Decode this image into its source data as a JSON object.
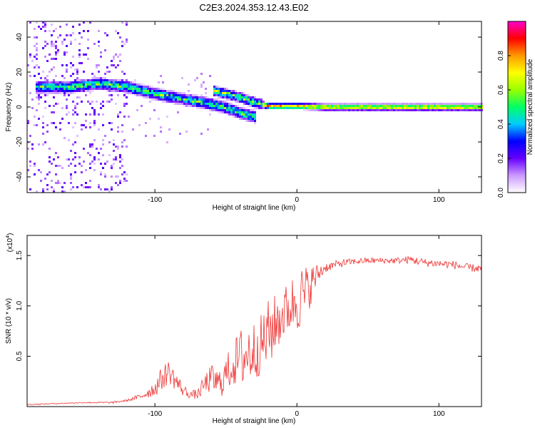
{
  "title": "C2E3.2024.353.12.43.E02",
  "chart_data": [
    {
      "type": "heatmap",
      "xlabel": "Height of straight line (km)",
      "ylabel": "Frequency (Hz)",
      "xlim": [
        -190,
        130
      ],
      "ylim": [
        -49,
        49
      ],
      "x_ticks": [
        -100,
        0,
        100
      ],
      "y_ticks": [
        -40,
        -20,
        0,
        20,
        40
      ],
      "colorbar": {
        "label": "Normalized spectral amplitude",
        "range": [
          0.0,
          1.0
        ],
        "ticks": [
          "0.0",
          "0.2",
          "0.4",
          "0.6",
          "0.8"
        ],
        "colors": [
          "#ffffff",
          "#cc99ff",
          "#6600ff",
          "#0000ff",
          "#00ccff",
          "#00ff66",
          "#99ff00",
          "#ffff00",
          "#ff9900",
          "#ff0000",
          "#ff00cc"
        ]
      },
      "ridges": [
        {
          "x": [
            -185,
            -160,
            -140,
            -120,
            -100,
            -80,
            -60,
            -50,
            -40,
            -30
          ],
          "y": [
            12,
            12,
            14,
            12,
            8,
            5,
            2,
            0,
            -3,
            -5
          ]
        },
        {
          "x": [
            -60,
            -50,
            -40,
            -30,
            -20,
            -10,
            0,
            20,
            60,
            100,
            130
          ],
          "y": [
            10,
            8,
            6,
            3,
            1,
            1,
            1,
            0.5,
            0.5,
            0.5,
            0.5
          ]
        }
      ]
    },
    {
      "type": "line",
      "xlabel": "Height of straight line (km)",
      "ylabel": "SNR (10 * v/v)",
      "y_multiplier": "(x10",
      "y_multiplier_exp": "4",
      "y_multiplier_close": ")",
      "xlim": [
        -190,
        130
      ],
      "ylim": [
        0.0,
        1.7
      ],
      "x_ticks": [
        -100,
        0,
        100
      ],
      "y_ticks": [
        "0.5",
        "1.0",
        "1.5"
      ],
      "y_tick_values": [
        0.5,
        1.0,
        1.5
      ],
      "series": [
        {
          "color": "#ee3333",
          "x": [
            -190,
            -170,
            -150,
            -130,
            -120,
            -110,
            -100,
            -95,
            -90,
            -85,
            -80,
            -75,
            -70,
            -65,
            -60,
            -55,
            -50,
            -45,
            -40,
            -35,
            -30,
            -25,
            -20,
            -15,
            -10,
            -5,
            0,
            5,
            10,
            15,
            20,
            25,
            30,
            40,
            50,
            60,
            70,
            80,
            90,
            100,
            110,
            120,
            130
          ],
          "y": [
            0.02,
            0.03,
            0.04,
            0.04,
            0.06,
            0.1,
            0.18,
            0.28,
            0.35,
            0.25,
            0.16,
            0.12,
            0.12,
            0.22,
            0.28,
            0.22,
            0.32,
            0.42,
            0.48,
            0.52,
            0.56,
            0.62,
            0.72,
            0.82,
            0.92,
            0.98,
            1.08,
            1.1,
            1.22,
            1.32,
            1.38,
            1.4,
            1.42,
            1.44,
            1.45,
            1.45,
            1.45,
            1.46,
            1.43,
            1.42,
            1.41,
            1.38,
            1.37
          ],
          "noise": [
            0.005,
            0.005,
            0.005,
            0.01,
            0.01,
            0.03,
            0.08,
            0.12,
            0.12,
            0.1,
            0.06,
            0.04,
            0.05,
            0.1,
            0.14,
            0.15,
            0.18,
            0.22,
            0.3,
            0.35,
            0.3,
            0.3,
            0.35,
            0.3,
            0.28,
            0.25,
            0.35,
            0.3,
            0.2,
            0.1,
            0.05,
            0.04,
            0.04,
            0.03,
            0.03,
            0.03,
            0.03,
            0.04,
            0.04,
            0.04,
            0.04,
            0.04,
            0.04
          ]
        }
      ]
    }
  ]
}
